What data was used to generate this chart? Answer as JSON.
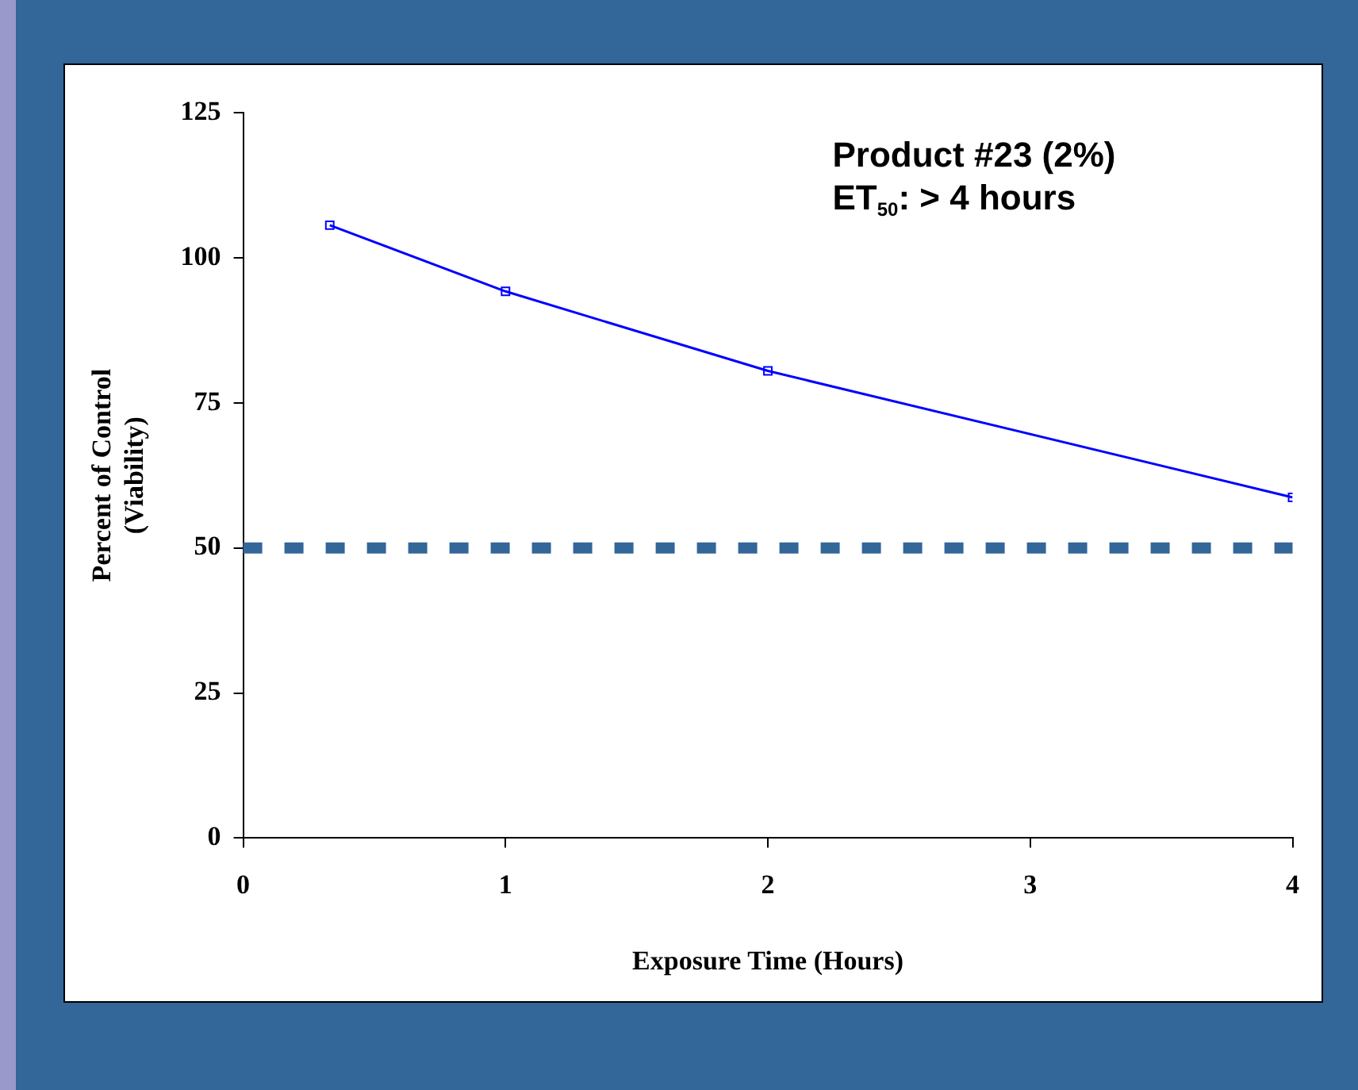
{
  "chart_data": {
    "type": "line",
    "xlabel": "Exposure Time (Hours)",
    "ylabel": "Percent of Control\n(Viability)",
    "x": [
      0.33,
      1,
      2,
      4
    ],
    "series": [
      {
        "color": "#0000ff",
        "values": [
          105.6,
          94.2,
          80.5,
          58.7
        ]
      }
    ],
    "xlim": [
      0,
      4
    ],
    "xticks": [
      0,
      1,
      2,
      3,
      4
    ],
    "ylim": [
      0,
      125
    ],
    "yticks": [
      0,
      25,
      50,
      75,
      100,
      125
    ],
    "ref_lines": [
      {
        "axis": "y",
        "value": 50,
        "color": "#336699",
        "line_style": "dashed"
      }
    ],
    "annotations": [
      "Product #23 (2%)",
      "ET$_{50}$: > 4 hours"
    ],
    "grid": false,
    "legend": false,
    "marker": "square",
    "line_style": "solid"
  }
}
